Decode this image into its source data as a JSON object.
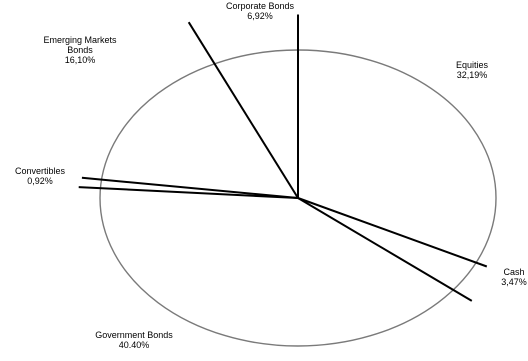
{
  "chart_data": {
    "type": "pie",
    "title": "",
    "colors": {
      "outline": "#7a7a7a",
      "divider": "#000000",
      "text": "#000000"
    },
    "slices": [
      {
        "name": "Equities",
        "value_label": "32,19%",
        "value": 32.19
      },
      {
        "name": "Cash",
        "value_label": "3,47%",
        "value": 3.47
      },
      {
        "name": "Government Bonds",
        "value_label": "40.40%",
        "value": 40.4
      },
      {
        "name": "Convertibles",
        "value_label": "0,92%",
        "value": 0.92
      },
      {
        "name": "Emerging Markets Bonds",
        "value_label": "16,10%",
        "value": 16.1
      },
      {
        "name": "Corporate Bonds",
        "value_label": "6,92%",
        "value": 6.92
      }
    ]
  }
}
